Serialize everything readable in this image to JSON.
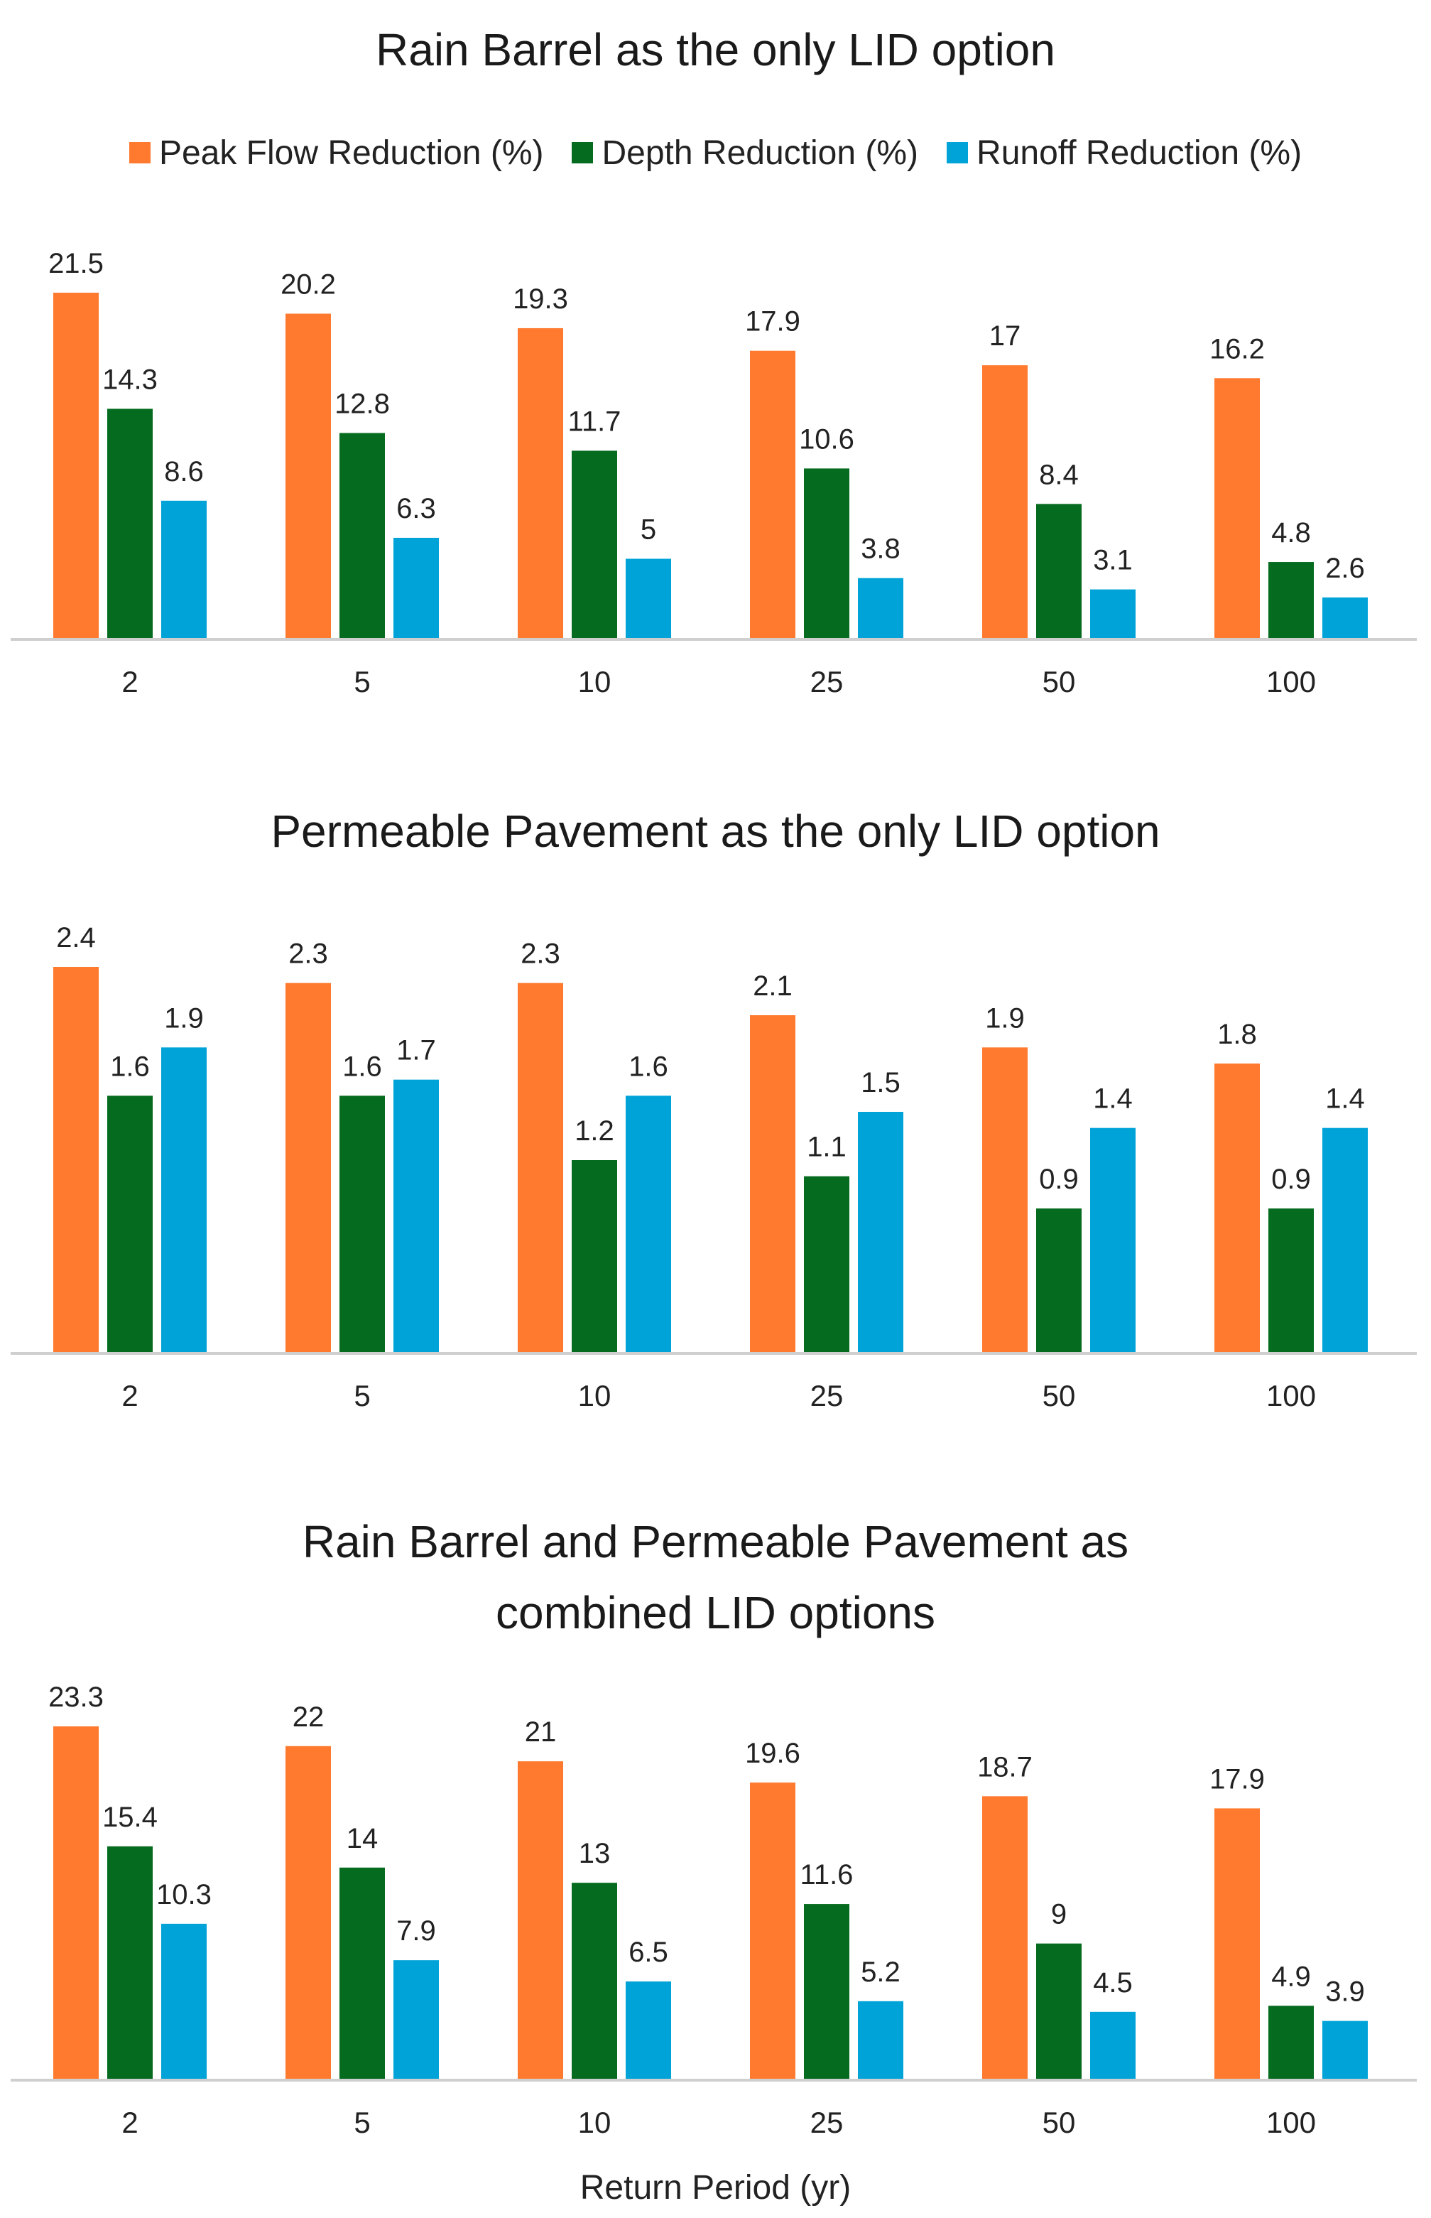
{
  "legend": {
    "items": [
      {
        "label": "Peak Flow Reduction (%)",
        "color": "#FF7A2F"
      },
      {
        "label": "Depth Reduction (%)",
        "color": "#056B1E"
      },
      {
        "label": "Runoff Reduction (%)",
        "color": "#00A3D8"
      }
    ]
  },
  "x_axis_title": "Return Period (yr)",
  "chart_data": [
    {
      "type": "bar",
      "title": "Rain Barrel as the only LID option",
      "title_lines": [
        "Rain Barrel as the only LID option"
      ],
      "categories": [
        "2",
        "5",
        "10",
        "25",
        "50",
        "100"
      ],
      "series": [
        {
          "name": "Peak Flow Reduction (%)",
          "values": [
            21.5,
            20.2,
            19.3,
            17.9,
            17,
            16.2
          ]
        },
        {
          "name": "Depth Reduction (%)",
          "values": [
            14.3,
            12.8,
            11.7,
            10.6,
            8.4,
            4.8
          ]
        },
        {
          "name": "Runoff Reduction (%)",
          "values": [
            8.6,
            6.3,
            5,
            3.8,
            3.1,
            2.6
          ]
        }
      ],
      "xlabel": "",
      "ylabel": "",
      "ylim": [
        0,
        21.5
      ]
    },
    {
      "type": "bar",
      "title": "Permeable Pavement as the only LID option",
      "title_lines": [
        "Permeable Pavement as the only LID option"
      ],
      "categories": [
        "2",
        "5",
        "10",
        "25",
        "50",
        "100"
      ],
      "series": [
        {
          "name": "Peak Flow Reduction (%)",
          "values": [
            2.4,
            2.3,
            2.3,
            2.1,
            1.9,
            1.8
          ]
        },
        {
          "name": "Depth Reduction (%)",
          "values": [
            1.6,
            1.6,
            1.2,
            1.1,
            0.9,
            0.9
          ]
        },
        {
          "name": "Runoff Reduction (%)",
          "values": [
            1.9,
            1.7,
            1.6,
            1.5,
            1.4,
            1.4
          ]
        }
      ],
      "xlabel": "",
      "ylabel": "",
      "ylim": [
        0,
        2.4
      ]
    },
    {
      "type": "bar",
      "title": "Rain Barrel and Permeable Pavement as combined LID options",
      "title_lines": [
        "Rain Barrel and Permeable Pavement as",
        "combined LID options"
      ],
      "categories": [
        "2",
        "5",
        "10",
        "25",
        "50",
        "100"
      ],
      "series": [
        {
          "name": "Peak Flow Reduction (%)",
          "values": [
            23.3,
            22,
            21,
            19.6,
            18.7,
            17.9
          ]
        },
        {
          "name": "Depth Reduction (%)",
          "values": [
            15.4,
            14,
            13,
            11.6,
            9,
            4.9
          ]
        },
        {
          "name": "Runoff Reduction (%)",
          "values": [
            10.3,
            7.9,
            6.5,
            5.2,
            4.5,
            3.9
          ]
        }
      ],
      "xlabel": "Return Period (yr)",
      "ylabel": "",
      "ylim": [
        0,
        23.3
      ]
    }
  ]
}
